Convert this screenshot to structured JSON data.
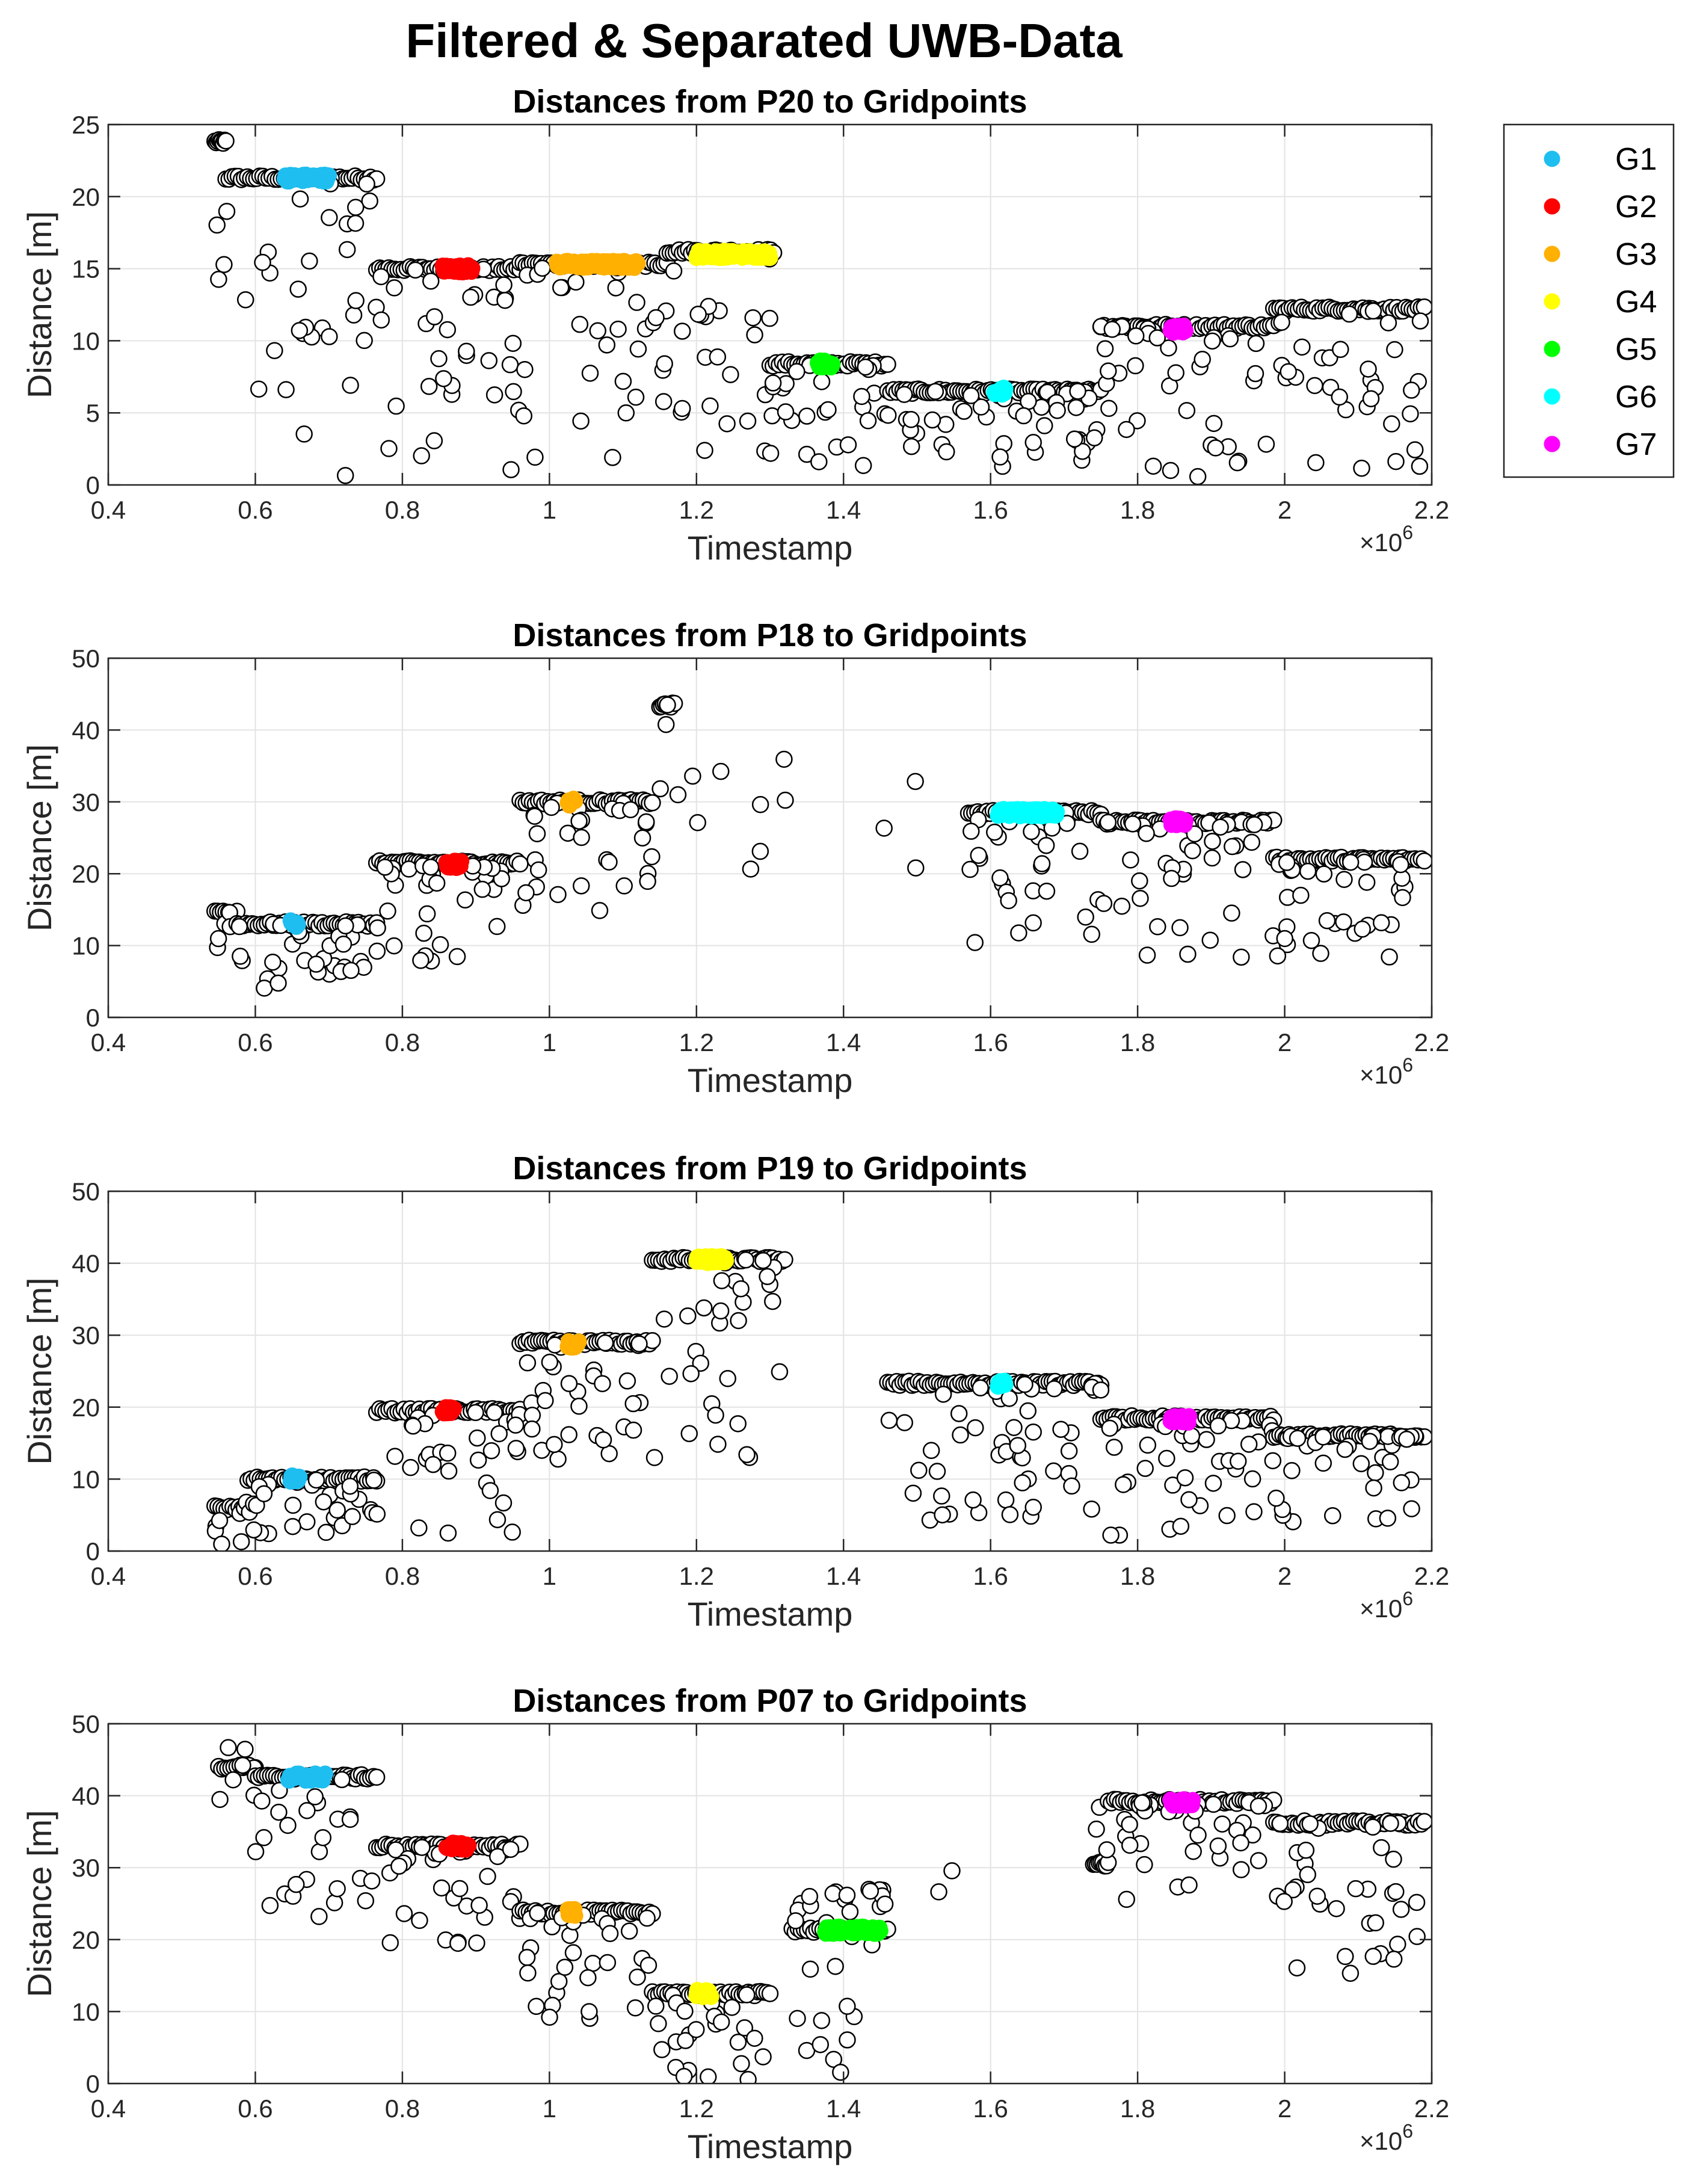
{
  "figure": {
    "title": "Filtered & Separated UWB-Data"
  },
  "legend": {
    "position": "outside-right",
    "entries": [
      {
        "label": "G1",
        "color": "#1EBEF0"
      },
      {
        "label": "G2",
        "color": "#FF0000"
      },
      {
        "label": "G3",
        "color": "#FFB000"
      },
      {
        "label": "G4",
        "color": "#FFFF00"
      },
      {
        "label": "G5",
        "color": "#00FF00"
      },
      {
        "label": "G6",
        "color": "#00FFFF"
      },
      {
        "label": "G7",
        "color": "#FF00FF"
      }
    ]
  },
  "chart_data": [
    {
      "type": "scatter",
      "title": "Distances from P20 to Gridpoints",
      "xlabel": "Timestamp",
      "ylabel": "Distance [m]",
      "x_exponent_label": "×10^6",
      "x_exponent": "6",
      "xlim": [
        0.4,
        2.2
      ],
      "ylim": [
        0,
        25
      ],
      "xticks": [
        "0.4",
        "0.6",
        "0.8",
        "1",
        "1.2",
        "1.4",
        "1.6",
        "1.8",
        "2",
        "2.2"
      ],
      "yticks": [
        "0",
        "5",
        "10",
        "15",
        "20",
        "25"
      ],
      "grid": true,
      "raw_marker": {
        "face": "#FFFFFF",
        "edge": "#000000"
      },
      "raw_segments": [
        {
          "x_range": [
            0.545,
            0.56
          ],
          "y_main": 23.8,
          "scatter_lo": 10,
          "scatter_hi": 23.8
        },
        {
          "x_range": [
            0.56,
            0.765
          ],
          "y_main": 21.3,
          "scatter_lo": 0.5,
          "scatter_hi": 21.3
        },
        {
          "x_range": [
            0.765,
            0.96
          ],
          "y_main": 15.0,
          "scatter_lo": 0.5,
          "scatter_hi": 15.0
        },
        {
          "x_range": [
            0.96,
            1.16
          ],
          "y_main": 15.3,
          "scatter_lo": 1.5,
          "scatter_hi": 15.3
        },
        {
          "x_range": [
            1.16,
            1.305
          ],
          "y_main": 16.2,
          "scatter_lo": 1.5,
          "scatter_hi": 16.2
        },
        {
          "x_range": [
            1.3,
            1.46
          ],
          "y_main": 8.4,
          "scatter_lo": 0.2,
          "scatter_hi": 8.4
        },
        {
          "x_range": [
            1.46,
            1.75
          ],
          "y_main": 6.5,
          "scatter_lo": 1,
          "scatter_hi": 6.5
        },
        {
          "x_range": [
            1.75,
            1.985
          ],
          "y_main": 11.0,
          "scatter_lo": 0.2,
          "scatter_hi": 11.0
        },
        {
          "x_range": [
            1.985,
            2.19
          ],
          "y_main": 12.2,
          "scatter_lo": 0.5,
          "scatter_hi": 12.2
        }
      ],
      "series": [
        {
          "name": "G1",
          "color": "#1EBEF0",
          "x_range": [
            0.64,
            0.7
          ],
          "y": 21.3
        },
        {
          "name": "G2",
          "color": "#FF0000",
          "x_range": [
            0.855,
            0.895
          ],
          "y": 15.0
        },
        {
          "name": "G3",
          "color": "#FFB000",
          "x_range": [
            1.01,
            1.12
          ],
          "y": 15.3
        },
        {
          "name": "G4",
          "color": "#FFFF00",
          "x_range": [
            1.2,
            1.3
          ],
          "y": 16.0
        },
        {
          "name": "G5",
          "color": "#00FF00",
          "x_range": [
            1.365,
            1.385
          ],
          "y": 8.4
        },
        {
          "name": "G6",
          "color": "#00FFFF",
          "x_range": [
            1.605,
            1.62
          ],
          "y": 6.5
        },
        {
          "name": "G7",
          "color": "#FF00FF",
          "x_range": [
            1.845,
            1.865
          ],
          "y": 10.8
        }
      ]
    },
    {
      "type": "scatter",
      "title": "Distances from P18 to Gridpoints",
      "xlabel": "Timestamp",
      "ylabel": "Distance [m]",
      "x_exponent_label": "×10^6",
      "x_exponent": "6",
      "xlim": [
        0.4,
        2.2
      ],
      "ylim": [
        0,
        50
      ],
      "xticks": [
        "0.4",
        "0.6",
        "0.8",
        "1",
        "1.2",
        "1.4",
        "1.6",
        "1.8",
        "2",
        "2.2"
      ],
      "yticks": [
        "0",
        "10",
        "20",
        "30",
        "40",
        "50"
      ],
      "grid": true,
      "raw_marker": {
        "face": "#FFFFFF",
        "edge": "#000000"
      },
      "raw_segments": [
        {
          "x_range": [
            0.545,
            0.575
          ],
          "y_main": 14.5,
          "scatter_lo": 1,
          "scatter_hi": 15
        },
        {
          "x_range": [
            0.575,
            0.765
          ],
          "y_main": 13.0,
          "scatter_lo": 4,
          "scatter_hi": 13
        },
        {
          "x_range": [
            0.765,
            0.96
          ],
          "y_main": 21.5,
          "scatter_lo": 7.5,
          "scatter_hi": 21.5
        },
        {
          "x_range": [
            0.96,
            1.14
          ],
          "y_main": 30.0,
          "scatter_lo": 14,
          "scatter_hi": 30
        },
        {
          "x_range": [
            1.15,
            1.17
          ],
          "y_main": 43.5,
          "scatter_lo": 29,
          "scatter_hi": 43.5
        },
        {
          "x_range": [
            1.17,
            1.33
          ],
          "y_main": 0,
          "scatter_lo": 19,
          "scatter_hi": 43,
          "sparse": true
        },
        {
          "x_range": [
            1.44,
            1.5
          ],
          "y_main": 0,
          "scatter_lo": 18,
          "scatter_hi": 34.5,
          "sparse": true
        },
        {
          "x_range": [
            1.57,
            1.75
          ],
          "y_main": 28.5,
          "scatter_lo": 10,
          "scatter_hi": 28.5
        },
        {
          "x_range": [
            1.75,
            1.985
          ],
          "y_main": 27.2,
          "scatter_lo": 8,
          "scatter_hi": 27.2
        },
        {
          "x_range": [
            1.985,
            2.19
          ],
          "y_main": 22.0,
          "scatter_lo": 8,
          "scatter_hi": 22
        }
      ],
      "series": [
        {
          "name": "G1",
          "color": "#1EBEF0",
          "x_range": [
            0.648,
            0.658
          ],
          "y": 13.0
        },
        {
          "name": "G2",
          "color": "#FF0000",
          "x_range": [
            0.86,
            0.88
          ],
          "y": 21.3
        },
        {
          "name": "G3",
          "color": "#FFB000",
          "x_range": [
            1.025,
            1.035
          ],
          "y": 30.0
        },
        {
          "name": "G6",
          "color": "#00FFFF",
          "x_range": [
            1.61,
            1.69
          ],
          "y": 28.5
        },
        {
          "name": "G7",
          "color": "#FF00FF",
          "x_range": [
            1.845,
            1.865
          ],
          "y": 27.2
        }
      ]
    },
    {
      "type": "scatter",
      "title": "Distances from P19 to Gridpoints",
      "xlabel": "Timestamp",
      "ylabel": "Distance [m]",
      "x_exponent_label": "×10^6",
      "x_exponent": "6",
      "xlim": [
        0.4,
        2.2
      ],
      "ylim": [
        0,
        50
      ],
      "xticks": [
        "0.4",
        "0.6",
        "0.8",
        "1",
        "1.2",
        "1.4",
        "1.6",
        "1.8",
        "2",
        "2.2"
      ],
      "yticks": [
        "0",
        "10",
        "20",
        "30",
        "40",
        "50"
      ],
      "grid": true,
      "raw_marker": {
        "face": "#FFFFFF",
        "edge": "#000000"
      },
      "raw_segments": [
        {
          "x_range": [
            0.545,
            0.59
          ],
          "y_main": 6.0,
          "scatter_lo": 0.5,
          "scatter_hi": 8
        },
        {
          "x_range": [
            0.59,
            0.765
          ],
          "y_main": 10.0,
          "scatter_lo": 2,
          "scatter_hi": 10
        },
        {
          "x_range": [
            0.765,
            0.96
          ],
          "y_main": 19.5,
          "scatter_lo": 2,
          "scatter_hi": 19.5
        },
        {
          "x_range": [
            0.96,
            1.14
          ],
          "y_main": 29.0,
          "scatter_lo": 12,
          "scatter_hi": 29
        },
        {
          "x_range": [
            1.14,
            1.32
          ],
          "y_main": 40.5,
          "scatter_lo": 11,
          "scatter_hi": 40.5
        },
        {
          "x_range": [
            1.46,
            1.75
          ],
          "y_main": 23.3,
          "scatter_lo": 4,
          "scatter_hi": 23.3
        },
        {
          "x_range": [
            1.75,
            1.985
          ],
          "y_main": 18.5,
          "scatter_lo": 1.5,
          "scatter_hi": 18.5
        },
        {
          "x_range": [
            1.985,
            2.19
          ],
          "y_main": 16.0,
          "scatter_lo": 3,
          "scatter_hi": 16
        }
      ],
      "series": [
        {
          "name": "G1",
          "color": "#1EBEF0",
          "x_range": [
            0.648,
            0.66
          ],
          "y": 10.0
        },
        {
          "name": "G2",
          "color": "#FF0000",
          "x_range": [
            0.855,
            0.87
          ],
          "y": 19.5
        },
        {
          "name": "G3",
          "color": "#FFB000",
          "x_range": [
            1.025,
            1.04
          ],
          "y": 28.7
        },
        {
          "name": "G4",
          "color": "#FFFF00",
          "x_range": [
            1.2,
            1.24
          ],
          "y": 40.5
        },
        {
          "name": "G6",
          "color": "#00FFFF",
          "x_range": [
            1.61,
            1.62
          ],
          "y": 23.3
        },
        {
          "name": "G7",
          "color": "#FF00FF",
          "x_range": [
            1.845,
            1.87
          ],
          "y": 18.3
        }
      ]
    },
    {
      "type": "scatter",
      "title": "Distances from P07 to Gridpoints",
      "xlabel": "Timestamp",
      "ylabel": "Distance [m]",
      "x_exponent_label": "×10^6",
      "x_exponent": "6",
      "xlim": [
        0.4,
        2.2
      ],
      "ylim": [
        0,
        50
      ],
      "xticks": [
        "0.4",
        "0.6",
        "0.8",
        "1",
        "1.2",
        "1.4",
        "1.6",
        "1.8",
        "2",
        "2.2"
      ],
      "yticks": [
        "0",
        "10",
        "20",
        "30",
        "40",
        "50"
      ],
      "grid": true,
      "raw_marker": {
        "face": "#FFFFFF",
        "edge": "#000000"
      },
      "raw_segments": [
        {
          "x_range": [
            0.55,
            0.6
          ],
          "y_main": 44.0,
          "scatter_lo": 33,
          "scatter_hi": 47.5
        },
        {
          "x_range": [
            0.6,
            0.765
          ],
          "y_main": 42.6,
          "scatter_lo": 23,
          "scatter_hi": 42.6
        },
        {
          "x_range": [
            0.765,
            0.96
          ],
          "y_main": 33.0,
          "scatter_lo": 19,
          "scatter_hi": 33
        },
        {
          "x_range": [
            0.96,
            1.14
          ],
          "y_main": 23.8,
          "scatter_lo": 9,
          "scatter_hi": 23.8
        },
        {
          "x_range": [
            1.14,
            1.3
          ],
          "y_main": 12.5,
          "scatter_lo": 0.5,
          "scatter_hi": 12.5
        },
        {
          "x_range": [
            1.3,
            1.46
          ],
          "y_main": 0,
          "scatter_lo": 0.5,
          "scatter_hi": 11,
          "sparse": true
        },
        {
          "x_range": [
            1.33,
            1.46
          ],
          "y_main": 21.3,
          "scatter_lo": 15,
          "scatter_hi": 27
        },
        {
          "x_range": [
            1.52,
            1.56
          ],
          "y_main": 0,
          "scatter_lo": 19,
          "scatter_hi": 30,
          "sparse": true
        },
        {
          "x_range": [
            1.74,
            1.76
          ],
          "y_main": 30.5,
          "scatter_lo": 29,
          "scatter_hi": 39
        },
        {
          "x_range": [
            1.76,
            1.985
          ],
          "y_main": 39.2,
          "scatter_lo": 25,
          "scatter_hi": 39.2
        },
        {
          "x_range": [
            1.985,
            2.19
          ],
          "y_main": 36.2,
          "scatter_lo": 15,
          "scatter_hi": 36.2
        }
      ],
      "series": [
        {
          "name": "G1",
          "color": "#1EBEF0",
          "x_range": [
            0.645,
            0.695
          ],
          "y": 42.6
        },
        {
          "name": "G2",
          "color": "#FF0000",
          "x_range": [
            0.86,
            0.89
          ],
          "y": 33.0
        },
        {
          "name": "G3",
          "color": "#FFB000",
          "x_range": [
            1.025,
            1.035
          ],
          "y": 23.8
        },
        {
          "name": "G4",
          "color": "#FFFF00",
          "x_range": [
            1.2,
            1.22
          ],
          "y": 12.5
        },
        {
          "name": "G5",
          "color": "#00FF00",
          "x_range": [
            1.375,
            1.45
          ],
          "y": 21.3
        },
        {
          "name": "G7",
          "color": "#FF00FF",
          "x_range": [
            1.845,
            1.875
          ],
          "y": 39.0
        }
      ]
    }
  ]
}
